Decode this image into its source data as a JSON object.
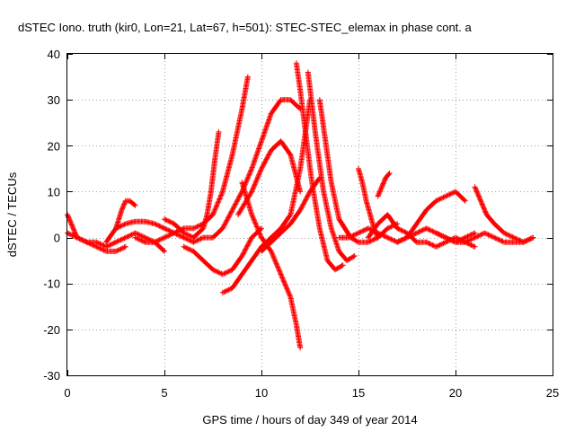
{
  "chart_data": {
    "type": "scatter",
    "title": "dSTEC Iono. truth (kir0, Lon=21, Lat=67, h=501): STEC-STEC_elemax in phase cont. a",
    "xlabel": "GPS time / hours of day 349 of year 2014",
    "ylabel": "dSTEC  / TECUs",
    "xlim": [
      0,
      25
    ],
    "ylim": [
      -30,
      40
    ],
    "xticks": [
      0,
      5,
      10,
      15,
      20,
      25
    ],
    "yticks": [
      -30,
      -20,
      -10,
      0,
      10,
      20,
      30,
      40
    ],
    "xtick_labels": [
      "0",
      "5",
      "10",
      "15",
      "20",
      "25"
    ],
    "ytick_labels": [
      "-30",
      "-20",
      "-10",
      "0",
      "10",
      "20",
      "30",
      "40"
    ],
    "grid": true,
    "marker": "+",
    "color": "#ff0000",
    "series": [
      {
        "x": [
          0.0,
          0.2,
          0.5,
          1.0,
          1.5,
          2.0,
          2.5,
          3.0
        ],
        "y": [
          5,
          3,
          0,
          -1,
          -2,
          -3,
          -3,
          -2
        ]
      },
      {
        "x": [
          0.0,
          0.5,
          1.0,
          1.5,
          2.0,
          2.5,
          3.0,
          3.5,
          4.0,
          4.5,
          5.0
        ],
        "y": [
          1,
          0,
          -1,
          -1,
          -2,
          -1,
          0,
          1,
          0,
          -1,
          -3
        ]
      },
      {
        "x": [
          2.0,
          2.5,
          2.8,
          3.0,
          3.2,
          3.5
        ],
        "y": [
          -1,
          2,
          6,
          8,
          8,
          7
        ]
      },
      {
        "x": [
          2.5,
          3.0,
          3.5,
          4.0,
          4.5,
          5.0,
          5.5,
          6.0,
          6.5
        ],
        "y": [
          2,
          3,
          3.5,
          3.5,
          3,
          2,
          1,
          0,
          -1
        ]
      },
      {
        "x": [
          3.5,
          4.0,
          4.5,
          5.0,
          5.5,
          6.0,
          6.5,
          7.0,
          7.5,
          8.0,
          8.5,
          9.0,
          9.3
        ],
        "y": [
          0,
          -1,
          -1,
          0,
          1,
          2,
          2,
          3,
          5,
          10,
          18,
          28,
          35
        ]
      },
      {
        "x": [
          5.0,
          5.5,
          6.0,
          6.5,
          7.0,
          7.2,
          7.4,
          7.6,
          7.8
        ],
        "y": [
          4,
          3,
          1,
          0,
          2,
          5,
          10,
          17,
          23
        ]
      },
      {
        "x": [
          6.0,
          6.5,
          7.0,
          7.5,
          8.0,
          8.5,
          9.0,
          9.5,
          10.0
        ],
        "y": [
          -2,
          -3,
          -5,
          -7,
          -8,
          -7,
          -4,
          0,
          2
        ]
      },
      {
        "x": [
          6.5,
          7.0,
          7.5,
          8.0,
          8.5,
          9.0,
          9.5,
          10.0,
          10.5,
          11.0,
          11.5,
          12.0
        ],
        "y": [
          -1,
          0,
          0,
          2,
          6,
          10,
          15,
          21,
          27,
          30,
          30,
          28
        ]
      },
      {
        "x": [
          8.0,
          8.5,
          9.0,
          9.5,
          10.0,
          10.5,
          11.0,
          11.5,
          12.0,
          12.5
        ],
        "y": [
          -12,
          -11,
          -8,
          -5,
          -2,
          0,
          2,
          5,
          15,
          30
        ]
      },
      {
        "x": [
          8.8,
          9.5,
          10.0,
          10.5,
          11.0,
          11.5,
          12.0
        ],
        "y": [
          5,
          10,
          15,
          19,
          21,
          18,
          10
        ]
      },
      {
        "x": [
          9.0,
          9.5,
          10.0,
          10.5,
          11.0,
          11.5,
          11.8,
          12.0
        ],
        "y": [
          12,
          5,
          0,
          -3,
          -8,
          -13,
          -19,
          -24
        ]
      },
      {
        "x": [
          10.0,
          10.5,
          11.0,
          11.5,
          12.0,
          12.5,
          13.0
        ],
        "y": [
          -3,
          -1,
          1,
          3,
          6,
          10,
          13
        ]
      },
      {
        "x": [
          11.8,
          12.0,
          12.3,
          12.6,
          13.0,
          13.4,
          13.8,
          14.2
        ],
        "y": [
          38,
          32,
          22,
          12,
          2,
          -5,
          -7,
          -6
        ]
      },
      {
        "x": [
          12.4,
          12.8,
          13.2,
          13.6,
          14.0,
          14.4,
          14.8
        ],
        "y": [
          36,
          22,
          10,
          2,
          -3,
          -5,
          -4
        ]
      },
      {
        "x": [
          13.0,
          13.2,
          13.4,
          13.6,
          13.8,
          14.0,
          14.3,
          14.6,
          15.0,
          15.5,
          16.0,
          16.5,
          17.0
        ],
        "y": [
          30,
          24,
          18,
          12,
          8,
          4,
          2,
          0,
          -1,
          -1,
          0,
          2,
          3
        ]
      },
      {
        "x": [
          14.0,
          14.5,
          15.0,
          15.5,
          16.0,
          16.5,
          17.0,
          17.5,
          18.0,
          18.5,
          19.0,
          19.5,
          20.0,
          20.5,
          21.0
        ],
        "y": [
          0,
          0,
          1,
          2,
          1,
          0,
          -1,
          0,
          1,
          2,
          1,
          0,
          -1,
          0,
          1
        ]
      },
      {
        "x": [
          15.0,
          15.2,
          15.4,
          15.6,
          15.8,
          16.0
        ],
        "y": [
          15,
          12,
          8,
          5,
          2,
          0
        ]
      },
      {
        "x": [
          15.5,
          16.0,
          16.5,
          17.0,
          17.5,
          18.0,
          18.5,
          19.0,
          19.5,
          20.0,
          20.5,
          21.0
        ],
        "y": [
          0,
          3,
          5,
          2,
          1,
          -1,
          -1,
          -2,
          -1,
          0,
          -1,
          -2
        ]
      },
      {
        "x": [
          16.0,
          16.2,
          16.4,
          16.6
        ],
        "y": [
          9,
          11,
          13,
          14
        ]
      },
      {
        "x": [
          17.0,
          17.5,
          18.0,
          18.5,
          19.0,
          19.5,
          20.0,
          20.5
        ],
        "y": [
          -1,
          0,
          3,
          6,
          8,
          9,
          10,
          8
        ]
      },
      {
        "x": [
          19.0,
          19.5,
          20.0,
          20.5,
          21.0,
          21.5,
          22.0,
          22.5,
          23.0,
          23.5,
          24.0
        ],
        "y": [
          1,
          0,
          -1,
          -1,
          0,
          1,
          0,
          -1,
          -1,
          -1,
          0
        ]
      },
      {
        "x": [
          21.0,
          21.3,
          21.6,
          22.0,
          22.5,
          23.0,
          23.5,
          24.0
        ],
        "y": [
          11,
          8,
          5,
          3,
          1,
          0,
          -1,
          0
        ]
      }
    ]
  }
}
